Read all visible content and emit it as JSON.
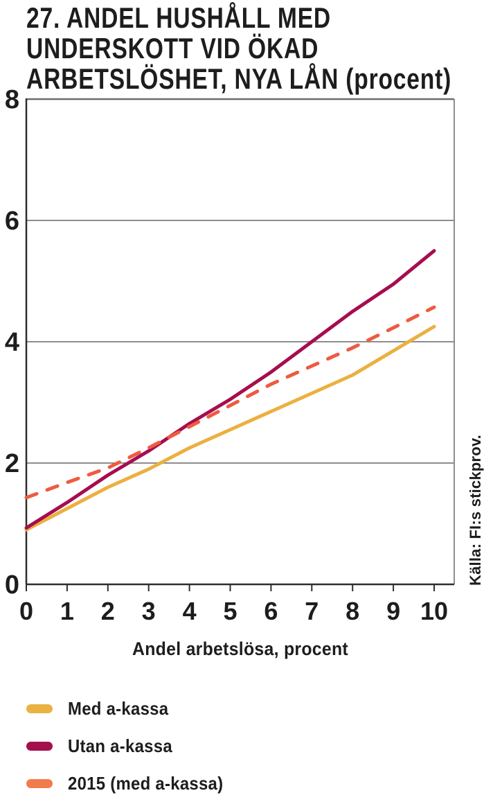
{
  "chart_data": {
    "type": "line",
    "title": "27. ANDEL HUSHÅLL MED UNDERSKOTT VID ÖKAD ARBETSLÖSHET, NYA LÅN (procent)",
    "title_lines": [
      "27. ANDEL HUSHÅLL MED",
      "UNDERSKOTT VID ÖKAD",
      "ARBETSLÖSHET, NYA LÅN (procent)"
    ],
    "xlabel": "Andel arbetslösa, procent",
    "ylabel": "",
    "source": "Källa: FI:s stickprov.",
    "x": [
      0,
      1,
      2,
      3,
      4,
      5,
      6,
      7,
      8,
      9,
      10
    ],
    "xticks": [
      0,
      1,
      2,
      3,
      4,
      5,
      6,
      7,
      8,
      9,
      10
    ],
    "yticks": [
      0,
      2,
      4,
      6,
      8
    ],
    "xlim": [
      0,
      10.5
    ],
    "ylim": [
      0,
      8
    ],
    "grid": "horizontal",
    "legend_position": "below-left",
    "series": [
      {
        "name": "Med a-kassa",
        "style": "solid",
        "color": "#EBB040",
        "swatch_color": "#EAB243",
        "values": [
          0.9,
          1.25,
          1.6,
          1.9,
          2.25,
          2.55,
          2.85,
          3.15,
          3.45,
          3.85,
          4.25
        ]
      },
      {
        "name": "Utan a-kassa",
        "style": "solid",
        "color": "#A60D4E",
        "swatch_color": "#A2114E",
        "values": [
          0.93,
          1.35,
          1.8,
          2.2,
          2.65,
          3.05,
          3.5,
          4.0,
          4.5,
          4.95,
          5.5
        ]
      },
      {
        "name": "2015 (med a-kassa)",
        "style": "dashed",
        "color": "#EE5B40",
        "swatch_color": "#F07C4D",
        "values": [
          1.43,
          1.68,
          1.92,
          2.25,
          2.6,
          2.95,
          3.3,
          3.6,
          3.9,
          4.23,
          4.57
        ]
      }
    ],
    "axis_color": "#2e2e2e",
    "grid_color": "#8d8d8d",
    "top_border_color": "#6d6d6d",
    "text_color": "#1d1d1d"
  }
}
